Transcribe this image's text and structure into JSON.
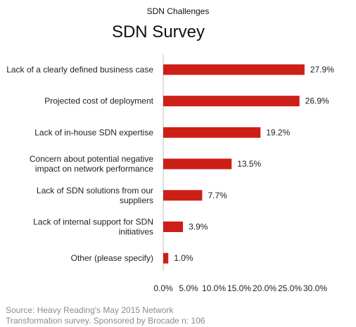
{
  "chart_data": {
    "type": "bar",
    "orientation": "horizontal",
    "suptitle": "SDN Challenges",
    "title": "SDN Survey",
    "categories": [
      [
        "Lack of a clearly defined business case"
      ],
      [
        "Projected cost of deployment"
      ],
      [
        "Lack of in-house SDN expertise"
      ],
      [
        "Concern about potential negative",
        "impact on network performance"
      ],
      [
        "Lack of SDN solutions from our",
        "suppliers"
      ],
      [
        "Lack of internal support for SDN",
        "initiatives"
      ],
      [
        "Other (please specify)"
      ]
    ],
    "values": [
      27.9,
      26.9,
      19.2,
      13.5,
      7.7,
      3.9,
      1.0
    ],
    "value_labels": [
      "27.9%",
      "26.9%",
      "19.2%",
      "13.5%",
      "7.7%",
      "3.9%",
      "1.0%"
    ],
    "xlim": [
      0,
      30
    ],
    "xticks": [
      0,
      5,
      10,
      15,
      20,
      25,
      30
    ],
    "xtick_labels": [
      "0.0%",
      "5.0%",
      "10.0%",
      "15.0%",
      "20.0%",
      "25.0%",
      "30.0%"
    ],
    "bar_color": "#cc1f17",
    "grid": false,
    "legend": "none"
  },
  "source_lines": [
    "Source: Heavy Reading's May  2015 Network",
    "Transformation survey. Sponsored by Brocade  n: 106"
  ]
}
